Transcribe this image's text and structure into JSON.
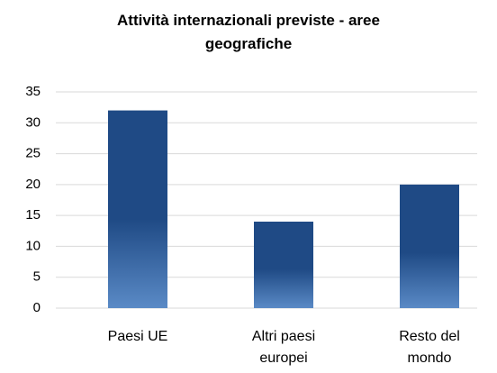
{
  "chart_data": {
    "type": "bar",
    "title": "Attività internazionali previste - aree geografiche",
    "categories": [
      "Paesi UE",
      "Altri paesi europei",
      "Resto del mondo"
    ],
    "values": [
      32,
      14,
      20
    ],
    "color": "#1f4a85",
    "ylim": [
      0,
      35
    ],
    "yticks": [
      0,
      5,
      10,
      15,
      20,
      25,
      30,
      35
    ],
    "grid": true
  }
}
